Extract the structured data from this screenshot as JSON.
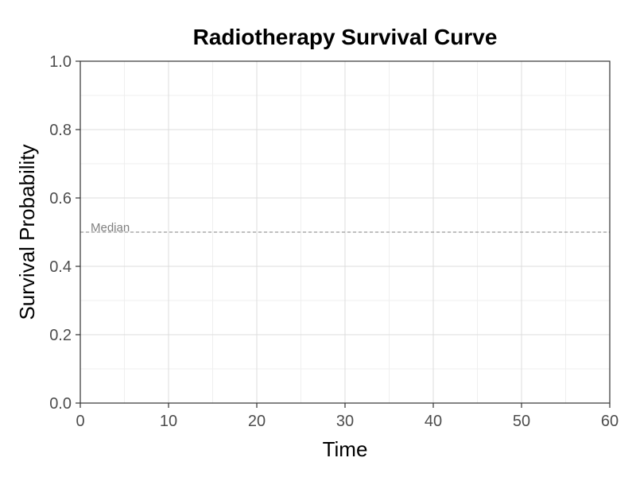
{
  "chart_data": {
    "type": "line",
    "title": "Radiotherapy Survival Curve",
    "xlabel": "Time",
    "ylabel": "Survival Probability",
    "xlim": [
      0,
      60
    ],
    "ylim": [
      0,
      1
    ],
    "x_ticks": [
      0,
      10,
      20,
      30,
      40,
      50,
      60
    ],
    "x_tick_labels": [
      "0",
      "10",
      "20",
      "30",
      "40",
      "50",
      "60"
    ],
    "y_ticks": [
      0,
      0.2,
      0.4,
      0.6,
      0.8,
      1
    ],
    "y_tick_labels": [
      "0.0",
      "0.2",
      "0.4",
      "0.6",
      "0.8",
      "1.0"
    ],
    "series": [],
    "grid": true,
    "reference_lines": [
      {
        "orientation": "horizontal",
        "y": 0.5,
        "label": "Median",
        "style": "dashed",
        "color": "#999999"
      }
    ],
    "colors": {
      "grid_major": "#dcdcdc",
      "grid_minor": "#efefef",
      "axis": "#333333",
      "tick_label": "#4d4d4d",
      "annotation": "#808080"
    }
  }
}
